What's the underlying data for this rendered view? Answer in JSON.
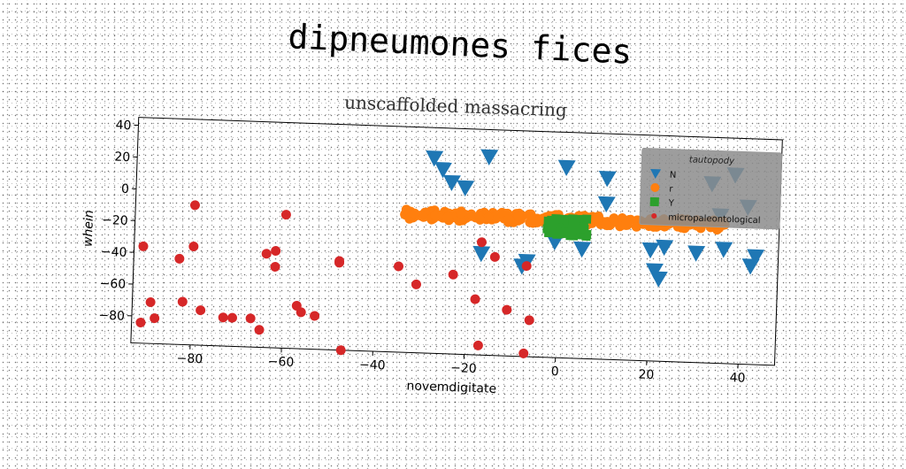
{
  "title": "dipneumones fices",
  "chart_data": {
    "type": "scatter",
    "title": "unscaffolded massacring",
    "xlabel": "novemdigitate",
    "ylabel": "whein",
    "xlim": [
      -93,
      48
    ],
    "ylim": [
      -97,
      45
    ],
    "xticks": [
      -80,
      -60,
      -40,
      -20,
      0,
      20,
      40
    ],
    "yticks": [
      -80,
      -60,
      -40,
      -20,
      0,
      20,
      40
    ],
    "grid": false,
    "legend": {
      "title": "tautopody",
      "placement": "upper right"
    },
    "series": [
      {
        "name": "N",
        "marker": "triangle-down",
        "color": "#1f77b4",
        "points": [
          [
            -28,
            26
          ],
          [
            -26,
            19
          ],
          [
            -24,
            11
          ],
          [
            -21,
            8
          ],
          [
            -16,
            28
          ],
          [
            -17,
            -33
          ],
          [
            -8,
            -40
          ],
          [
            -7,
            -37
          ],
          [
            -1,
            -24
          ],
          [
            1,
            23
          ],
          [
            5,
            -28
          ],
          [
            10,
            17
          ],
          [
            10,
            1
          ],
          [
            20,
            -27
          ],
          [
            21,
            -40
          ],
          [
            22,
            -45
          ],
          [
            23,
            -25
          ],
          [
            30,
            -28
          ],
          [
            33,
            16
          ],
          [
            36,
            -25
          ],
          [
            38,
            22
          ],
          [
            41,
            2
          ],
          [
            42,
            -35
          ],
          [
            43,
            -29
          ],
          [
            35,
            -4
          ]
        ]
      },
      {
        "name": "r",
        "marker": "circle",
        "color": "#ff7f0e",
        "style": "dense horizontal band",
        "x_range": [
          -34,
          38
        ],
        "y_center": -10
      },
      {
        "name": "Y",
        "marker": "square",
        "color": "#2ca02c",
        "style": "dense cluster",
        "x_range": [
          -3,
          6
        ],
        "y_range": [
          -20,
          -9
        ]
      },
      {
        "name": "micropaleontological",
        "marker": "circle",
        "color": "#d62728",
        "points": [
          [
            -91,
            -36
          ],
          [
            -91,
            -84
          ],
          [
            -89,
            -71
          ],
          [
            -88,
            -81
          ],
          [
            -83,
            -43
          ],
          [
            -82,
            -70
          ],
          [
            -80,
            -9
          ],
          [
            -80,
            -35
          ],
          [
            -78,
            -75
          ],
          [
            -73,
            -79
          ],
          [
            -71,
            -79
          ],
          [
            -67,
            -79
          ],
          [
            -65,
            -86
          ],
          [
            -64,
            -38
          ],
          [
            -62,
            -46
          ],
          [
            -62,
            -36
          ],
          [
            -60,
            -13
          ],
          [
            -57,
            -70
          ],
          [
            -56,
            -74
          ],
          [
            -53,
            -76
          ],
          [
            -48,
            -42
          ],
          [
            -48,
            -41
          ],
          [
            -47,
            -97
          ],
          [
            -35,
            -43
          ],
          [
            -31,
            -54
          ],
          [
            -23,
            -47
          ],
          [
            -18,
            -62
          ],
          [
            -17,
            -91
          ],
          [
            -17,
            -26
          ],
          [
            -14,
            -35
          ],
          [
            -11,
            -68
          ],
          [
            -6,
            -74
          ],
          [
            -7,
            -95
          ],
          [
            -7,
            -40
          ]
        ]
      }
    ]
  }
}
